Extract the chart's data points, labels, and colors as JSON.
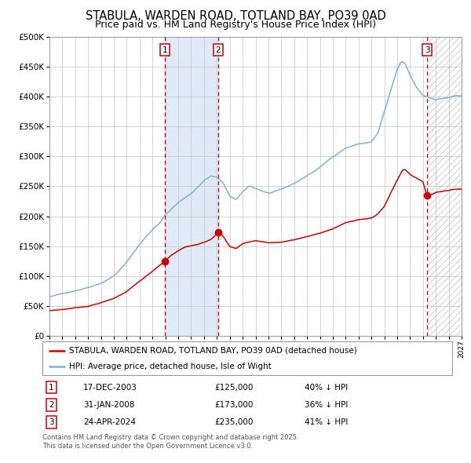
{
  "title": "STABULA, WARDEN ROAD, TOTLAND BAY, PO39 0AD",
  "subtitle": "Price paid vs. HM Land Registry's House Price Index (HPI)",
  "legend_property": "STABULA, WARDEN ROAD, TOTLAND BAY, PO39 0AD (detached house)",
  "legend_hpi": "HPI: Average price, detached house, Isle of Wight",
  "footnote": "Contains HM Land Registry data © Crown copyright and database right 2025.\nThis data is licensed under the Open Government Licence v3.0.",
  "transactions": [
    {
      "num": 1,
      "date": "17-DEC-2003",
      "date_x": 2003.96,
      "price": 125000,
      "label": "40% ↓ HPI"
    },
    {
      "num": 2,
      "date": "31-JAN-2008",
      "date_x": 2008.08,
      "price": 173000,
      "label": "36% ↓ HPI"
    },
    {
      "num": 3,
      "date": "24-APR-2024",
      "date_x": 2024.32,
      "price": 235000,
      "label": "41% ↓ HPI"
    }
  ],
  "xmin": 1995,
  "xmax": 2027,
  "ymin": 0,
  "ymax": 500000,
  "yticks": [
    0,
    50000,
    100000,
    150000,
    200000,
    250000,
    300000,
    350000,
    400000,
    450000,
    500000
  ],
  "hpi_color": "#7ab4d8",
  "property_color": "#cc0000",
  "dashed_line_color": "#cc0000",
  "shaded_region_color": "#deeaf5",
  "grid_color": "#cccccc",
  "background_color": "#ffffff",
  "title_fontsize": 10.5,
  "subtitle_fontsize": 9
}
